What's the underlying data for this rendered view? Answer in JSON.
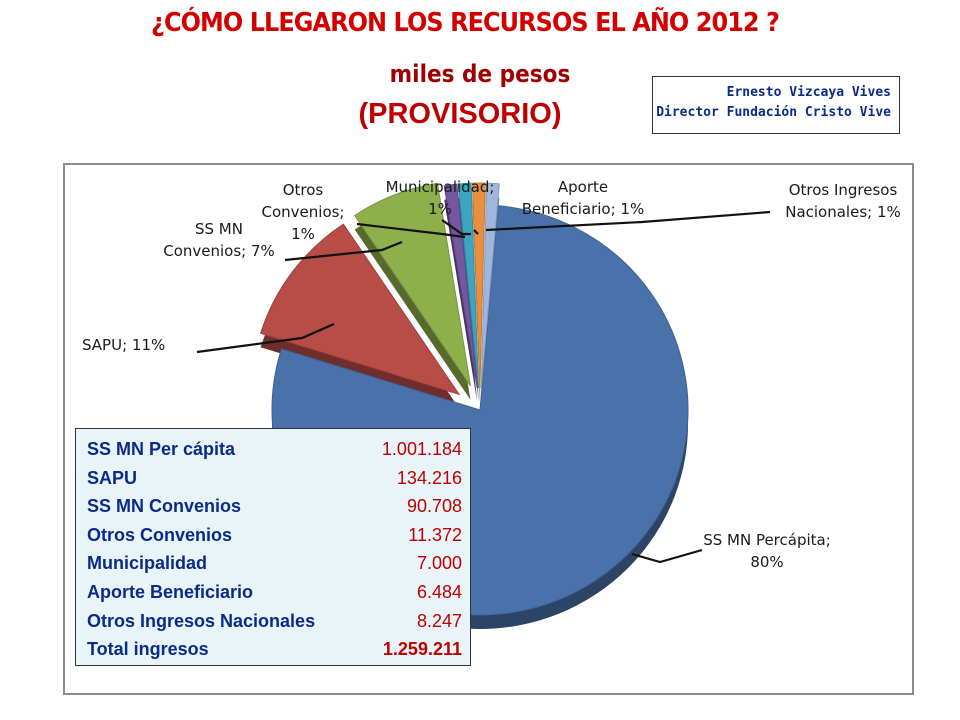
{
  "title": "¿CÓMO LLEGARON LOS RECURSOS EL AÑO 2012 ?",
  "subtitle": "miles de pesos",
  "status": "(PROVISORIO)",
  "author": {
    "name": "Ernesto Vizcaya Vives",
    "role": "Director Fundación Cristo Vive"
  },
  "chart_data": {
    "type": "pie",
    "title": "",
    "slices": [
      {
        "label": "SS MN Percápita",
        "percent": 80,
        "color": "#4a72aa"
      },
      {
        "label": "SAPU",
        "percent": 11,
        "color": "#b84c47"
      },
      {
        "label": "SS MN Convenios",
        "percent": 7,
        "color": "#8eb04a"
      },
      {
        "label": "Otros Convenios",
        "percent": 1,
        "color": "#7457a0"
      },
      {
        "label": "Municipalidad",
        "percent": 1,
        "color": "#3ea5c0"
      },
      {
        "label": "Aporte Beneficiario",
        "percent": 1,
        "color": "#e89040"
      },
      {
        "label": "Otros Ingresos Nacionales",
        "percent": 1,
        "color": "#9fb7dd"
      }
    ],
    "labels_text": {
      "percapita": [
        "SS MN Percápita;",
        "80%"
      ],
      "sapu": [
        "SAPU; 11%"
      ],
      "convenios": [
        "SS MN",
        "Convenios; 7%"
      ],
      "otros_convenios": [
        "Otros",
        "Convenios;",
        "1%"
      ],
      "municipalidad": [
        "Municipalidad;",
        "1%"
      ],
      "aporte": [
        "Aporte",
        "Beneficiario; 1%"
      ],
      "otros_ingresos": [
        "Otros Ingresos",
        "Nacionales; 1%"
      ]
    }
  },
  "table": {
    "rows": [
      {
        "name": "SS MN Per cápita",
        "value": "1.001.184"
      },
      {
        "name": "SAPU",
        "value": "134.216"
      },
      {
        "name": "SS MN Convenios",
        "value": "90.708"
      },
      {
        "name": "Otros Convenios",
        "value": "11.372"
      },
      {
        "name": "Municipalidad",
        "value": "7.000"
      },
      {
        "name": "Aporte Beneficiario",
        "value": "6.484"
      },
      {
        "name": "Otros Ingresos Nacionales",
        "value": "8.247"
      }
    ],
    "total": {
      "name": "Total ingresos",
      "value": "1.259.211"
    }
  }
}
